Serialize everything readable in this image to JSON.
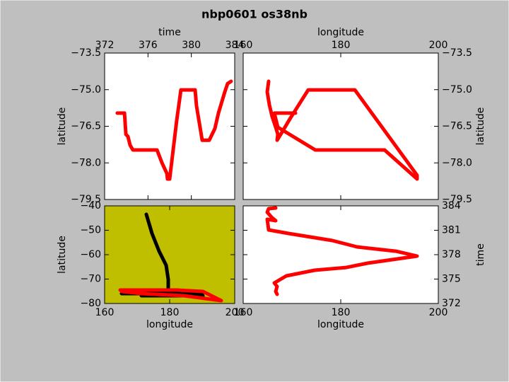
{
  "title": "nbp0601 os38nb",
  "chart_data": [
    {
      "type": "line",
      "xlabel": "time",
      "ylabel": "latitude",
      "xaxis_position": "top",
      "yaxis_position": "left",
      "background": "#ffffff",
      "xlim": [
        372,
        384
      ],
      "xticks": [
        372,
        376,
        380,
        384
      ],
      "ylim": [
        -79.5,
        -73.5
      ],
      "yticks": [
        {
          "value": -79.5,
          "label": "−79.5"
        },
        {
          "value": -78.0,
          "label": "−78.0"
        },
        {
          "value": -76.5,
          "label": "−76.5"
        },
        {
          "value": -75.0,
          "label": "−75.0"
        },
        {
          "value": -73.5,
          "label": "−73.5"
        }
      ],
      "series": [
        {
          "color": "#ff0000",
          "x": [
            373.17,
            373.63,
            373.83,
            373.96,
            374.15,
            374.35,
            374.61,
            374.74,
            376.83,
            377.28,
            377.74,
            377.8,
            378.0,
            378.65,
            379.04,
            380.35,
            380.48,
            381.0,
            381.65,
            382.17,
            382.5,
            383.09,
            383.35,
            383.67
          ],
          "values": [
            -75.96,
            -75.96,
            -75.96,
            -76.83,
            -76.92,
            -77.27,
            -77.47,
            -77.47,
            -77.47,
            -77.99,
            -78.43,
            -78.66,
            -78.66,
            -76.25,
            -75.01,
            -75.01,
            -75.67,
            -77.07,
            -77.07,
            -76.6,
            -75.96,
            -75.09,
            -74.75,
            -74.66
          ]
        }
      ]
    },
    {
      "type": "line",
      "xlabel": "longitude",
      "ylabel": "latitude",
      "xaxis_position": "top",
      "yaxis_position": "right",
      "background": "#ffffff",
      "xlim": [
        160,
        200
      ],
      "xticks": [
        160,
        180,
        200
      ],
      "ylim": [
        -79.5,
        -73.5
      ],
      "yticks": [
        {
          "value": -79.5,
          "label": "−79.5"
        },
        {
          "value": -78.0,
          "label": "−78.0"
        },
        {
          "value": -76.5,
          "label": "−76.5"
        },
        {
          "value": -75.0,
          "label": "−75.0"
        },
        {
          "value": -73.5,
          "label": "−73.5"
        }
      ],
      "series": [
        {
          "color": "#ff0000",
          "x": [
            165.22,
            164.93,
            165.36,
            165.94,
            166.67,
            167.1,
            166.96,
            168.12,
            169.57,
            173.33,
            182.9,
            195.65,
            195.65,
            188.99,
            174.78,
            167.1,
            166.38,
            170.72
          ],
          "values": [
            -74.66,
            -75.09,
            -75.62,
            -76.11,
            -76.54,
            -76.83,
            -77.07,
            -76.69,
            -76.2,
            -75.01,
            -75.01,
            -78.51,
            -78.66,
            -77.47,
            -77.47,
            -76.54,
            -75.96,
            -75.96
          ]
        }
      ]
    },
    {
      "type": "line",
      "xlabel": "longitude",
      "ylabel": "latitude",
      "xaxis_position": "bottom",
      "yaxis_position": "left",
      "background": "#bfbf00",
      "xlim": [
        160,
        200
      ],
      "xticks": [
        160,
        180,
        200
      ],
      "ylim": [
        -80,
        -40
      ],
      "yticks": [
        {
          "value": -80,
          "label": "−80"
        },
        {
          "value": -70,
          "label": "−70"
        },
        {
          "value": -60,
          "label": "−60"
        },
        {
          "value": -50,
          "label": "−50"
        },
        {
          "value": -40,
          "label": "−40"
        }
      ],
      "series": [
        {
          "color": "#000000",
          "x": [
            172.83,
            174.57,
            176.74,
            178.91,
            179.57,
            179.57,
            165.87,
            165.22,
            189.78,
            190.22,
            171.3
          ],
          "values": [
            -43.48,
            -51.3,
            -58.55,
            -64.35,
            -70.14,
            -74.49,
            -74.49,
            -75.94,
            -75.94,
            -76.81,
            -76.81
          ]
        },
        {
          "color": "#ff0000",
          "x": [
            164.78,
            167.61,
            182.17,
            190.22,
            195.87,
            184.35,
            171.3,
            165.22
          ],
          "values": [
            -74.49,
            -74.49,
            -74.49,
            -75.07,
            -78.84,
            -76.81,
            -75.94,
            -75.07
          ]
        }
      ]
    },
    {
      "type": "line",
      "xlabel": "longitude",
      "ylabel": "time",
      "xaxis_position": "bottom",
      "yaxis_position": "right",
      "background": "#ffffff",
      "xlim": [
        160,
        200
      ],
      "xticks": [
        160,
        180,
        200
      ],
      "ylim": [
        372,
        384
      ],
      "yticks": [
        372,
        375,
        378,
        381,
        384
      ],
      "series": [
        {
          "color": "#ff0000",
          "x": [
            166.96,
            166.67,
            166.96,
            166.38,
            168.84,
            174.64,
            181.16,
            185.51,
            195.65,
            191.3,
            183.33,
            178.26,
            169.28,
            165.22,
            164.93,
            166.67,
            165.94,
            164.93,
            165.22,
            166.67
          ],
          "values": [
            373.13,
            373.48,
            374.09,
            374.52,
            375.39,
            376.09,
            376.43,
            376.96,
            377.83,
            378.43,
            378.96,
            379.74,
            380.61,
            381.04,
            382.35,
            382.17,
            382.52,
            383.22,
            383.65,
            383.74
          ]
        }
      ]
    }
  ]
}
